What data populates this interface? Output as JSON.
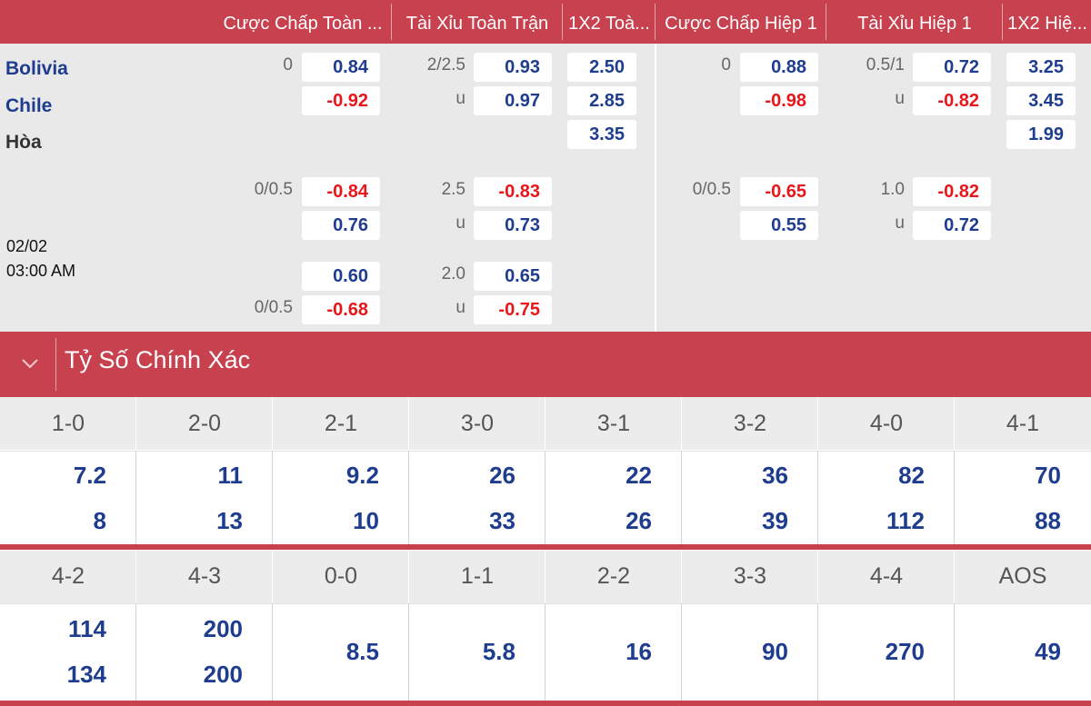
{
  "headers": [
    "Cược Chấp Toàn ...",
    "Tài Xỉu Toàn Trận",
    "1X2 Toà...",
    "Cược Chấp Hiệp 1",
    "Tài Xỉu Hiệp 1",
    "1X2 Hiệ..."
  ],
  "teams": {
    "home": "Bolivia",
    "away": "Chile",
    "draw": "Hòa"
  },
  "match_time": {
    "date": "02/02",
    "time": "03:00 AM"
  },
  "odds_rows": [
    {
      "ft_hdp_line": "0",
      "ft_hdp": "0.84",
      "ft_ou_line": "2/2.5",
      "ft_ou": "0.93",
      "ft_1x2": "2.50",
      "h1_hdp_line": "0",
      "h1_hdp": "0.88",
      "h1_ou_line": "0.5/1",
      "h1_ou": "0.72",
      "h1_1x2": "3.25"
    },
    {
      "ft_hdp_line": "",
      "ft_hdp": "-0.92",
      "ft_ou_line": "u",
      "ft_ou": "0.97",
      "ft_1x2": "2.85",
      "h1_hdp_line": "",
      "h1_hdp": "-0.98",
      "h1_ou_line": "u",
      "h1_ou": "-0.82",
      "h1_1x2": "3.45"
    },
    {
      "ft_1x2": "3.35",
      "h1_1x2": "1.99"
    },
    {
      "ft_hdp_line": "0/0.5",
      "ft_hdp": "-0.84",
      "ft_ou_line": "2.5",
      "ft_ou": "-0.83",
      "h1_hdp_line": "0/0.5",
      "h1_hdp": "-0.65",
      "h1_ou_line": "1.0",
      "h1_ou": "-0.82"
    },
    {
      "ft_hdp_line": "",
      "ft_hdp": "0.76",
      "ft_ou_line": "u",
      "ft_ou": "0.73",
      "h1_hdp_line": "",
      "h1_hdp": "0.55",
      "h1_ou_line": "u",
      "h1_ou": "0.72"
    },
    {
      "ft_hdp_line": "",
      "ft_hdp": "0.60",
      "ft_ou_line": "2.0",
      "ft_ou": "0.65"
    },
    {
      "ft_hdp_line": "0/0.5",
      "ft_hdp": "-0.68",
      "ft_ou_line": "u",
      "ft_ou": "-0.75"
    }
  ],
  "correct_score": {
    "title": "Tỷ Số Chính Xác",
    "block1": {
      "scores": [
        "1-0",
        "2-0",
        "2-1",
        "3-0",
        "3-1",
        "3-2",
        "4-0",
        "4-1"
      ],
      "home": [
        "7.2",
        "11",
        "9.2",
        "26",
        "22",
        "36",
        "82",
        "70"
      ],
      "away": [
        "8",
        "13",
        "10",
        "33",
        "26",
        "39",
        "112",
        "88"
      ]
    },
    "block2": {
      "scores": [
        "4-2",
        "4-3",
        "0-0",
        "1-1",
        "2-2",
        "3-3",
        "4-4",
        "AOS"
      ],
      "home": [
        "114",
        "200",
        "",
        "",
        "",
        "",
        "",
        ""
      ],
      "away": [
        "134",
        "200",
        "",
        "",
        "",
        "",
        "",
        ""
      ],
      "single": [
        "",
        "",
        "8.5",
        "5.8",
        "16",
        "90",
        "270",
        "49"
      ]
    }
  },
  "colors": {
    "accent": "#c8414e",
    "odds_blue": "#1f3d8f",
    "odds_red": "#e8161a",
    "panel_bg": "#e9e9ea"
  }
}
